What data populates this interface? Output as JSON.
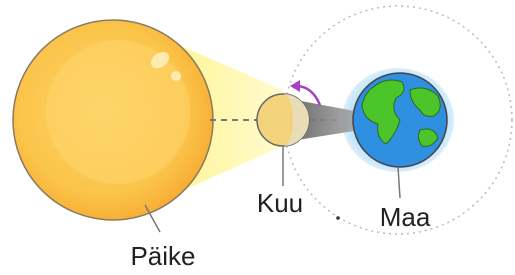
{
  "labels": {
    "sun": "Päike",
    "moon": "Kuu",
    "earth": "Maa"
  }
}
